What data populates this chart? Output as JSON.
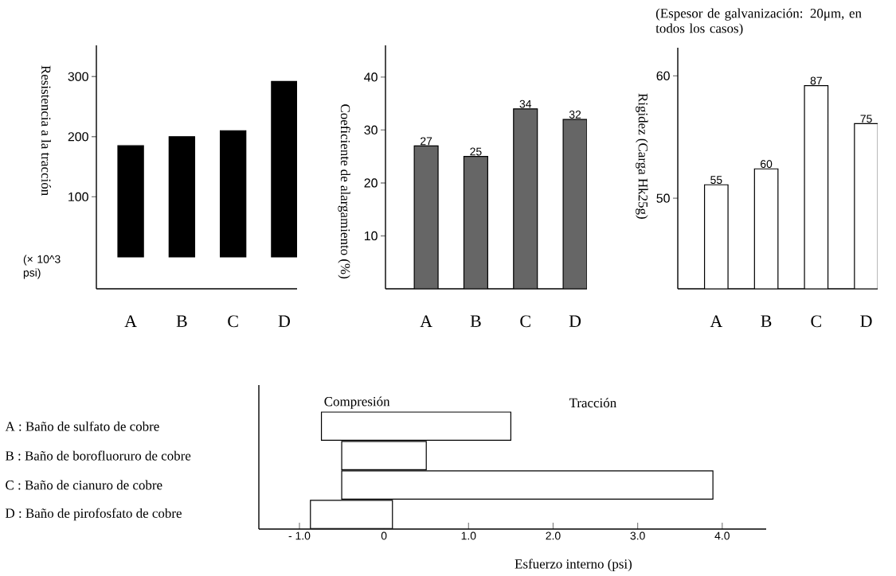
{
  "chart_data": [
    {
      "type": "bar",
      "ylabel": "Resistencia a la tracción",
      "categories": [
        "A",
        "B",
        "C",
        "D"
      ],
      "values": [
        185,
        200,
        210,
        292
      ],
      "color": "#000000",
      "ylim": [
        -53,
        352
      ],
      "yticks": [
        100,
        200,
        300
      ],
      "annotations": [
        "(× 10^3 psi)"
      ]
    },
    {
      "type": "bar",
      "ylabel": "Coeficiente de alargamiento (%)",
      "categories": [
        "A",
        "B",
        "C",
        "D"
      ],
      "values": [
        27,
        25,
        34,
        32
      ],
      "color": "#666666",
      "ylim": [
        0,
        46
      ],
      "yticks": [
        10,
        20,
        30,
        40
      ],
      "data_labels": true
    },
    {
      "type": "bar",
      "ylabel": "Rigidez (Carga Hk25g)",
      "categories": [
        "A",
        "B",
        "C",
        "D"
      ],
      "values": [
        51.1,
        52.4,
        59.2,
        56.1
      ],
      "color": "#ffffff",
      "ylim": [
        42.6,
        62.3
      ],
      "yticks": [
        50,
        60
      ],
      "annotations": [
        "(Espesor de galvanización: 20μm, en todos los casos)",
        {
          "text": "55",
          "x": "A",
          "y": 51.1
        },
        {
          "text": "60",
          "x": "B",
          "y": 52.4
        },
        {
          "text": "87",
          "x": "C",
          "y": 59.2
        },
        {
          "text": "75",
          "x": "D",
          "y": 56.1
        }
      ]
    },
    {
      "type": "bar",
      "orientation": "horizontal",
      "xlabel": "Esfuerzo interno (psi)",
      "categories": [
        "A : Baño de sulfato de cobre",
        "B : Baño de borofluoruro de cobre",
        "C : Baño de cianuro de cobre",
        "D : Baño de pirofosfato de cobre"
      ],
      "base": [
        -0.74,
        -0.5,
        -0.5,
        -0.87
      ],
      "values": [
        2.24,
        1.0,
        4.39,
        0.97
      ],
      "color": "#ffffff",
      "xlim": [
        -1.48,
        4.52
      ],
      "xticks": [
        {
          "value": -1,
          "label": "- 1.0"
        },
        {
          "value": 0,
          "label": "0"
        },
        {
          "value": 1,
          "label": "1.0"
        },
        {
          "value": 2,
          "label": "2.0"
        },
        {
          "value": 3,
          "label": "3.0"
        },
        {
          "value": 4,
          "label": "4.0"
        }
      ],
      "annotations": [
        "Compresión",
        "Tracción"
      ]
    }
  ]
}
